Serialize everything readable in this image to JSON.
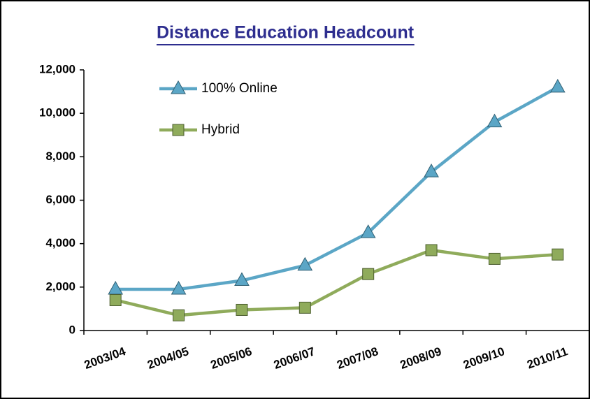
{
  "chart_data": {
    "type": "line",
    "title": "Distance Education Headcount",
    "categories": [
      "2003/04",
      "2004/05",
      "2005/06",
      "2006/07",
      "2007/08",
      "2008/09",
      "2009/10",
      "2010/11"
    ],
    "series": [
      {
        "name": "100% Online",
        "color": "#5ba6c6",
        "marker": "triangle",
        "values": [
          1900,
          1900,
          2300,
          3000,
          4500,
          7300,
          9600,
          11200
        ]
      },
      {
        "name": "Hybrid",
        "color": "#8fab5b",
        "marker": "square",
        "values": [
          1400,
          700,
          950,
          1050,
          2600,
          3700,
          3300,
          3500
        ]
      }
    ],
    "ylim": [
      0,
      12000
    ],
    "yticks": [
      {
        "value": 0,
        "label": "0"
      },
      {
        "value": 2000,
        "label": "2,000"
      },
      {
        "value": 4000,
        "label": "4,000"
      },
      {
        "value": 6000,
        "label": "6,000"
      },
      {
        "value": 8000,
        "label": "8,000"
      },
      {
        "value": 10000,
        "label": "10,000"
      },
      {
        "value": 12000,
        "label": "12,000"
      }
    ],
    "grid": false,
    "legend": "upper left"
  }
}
